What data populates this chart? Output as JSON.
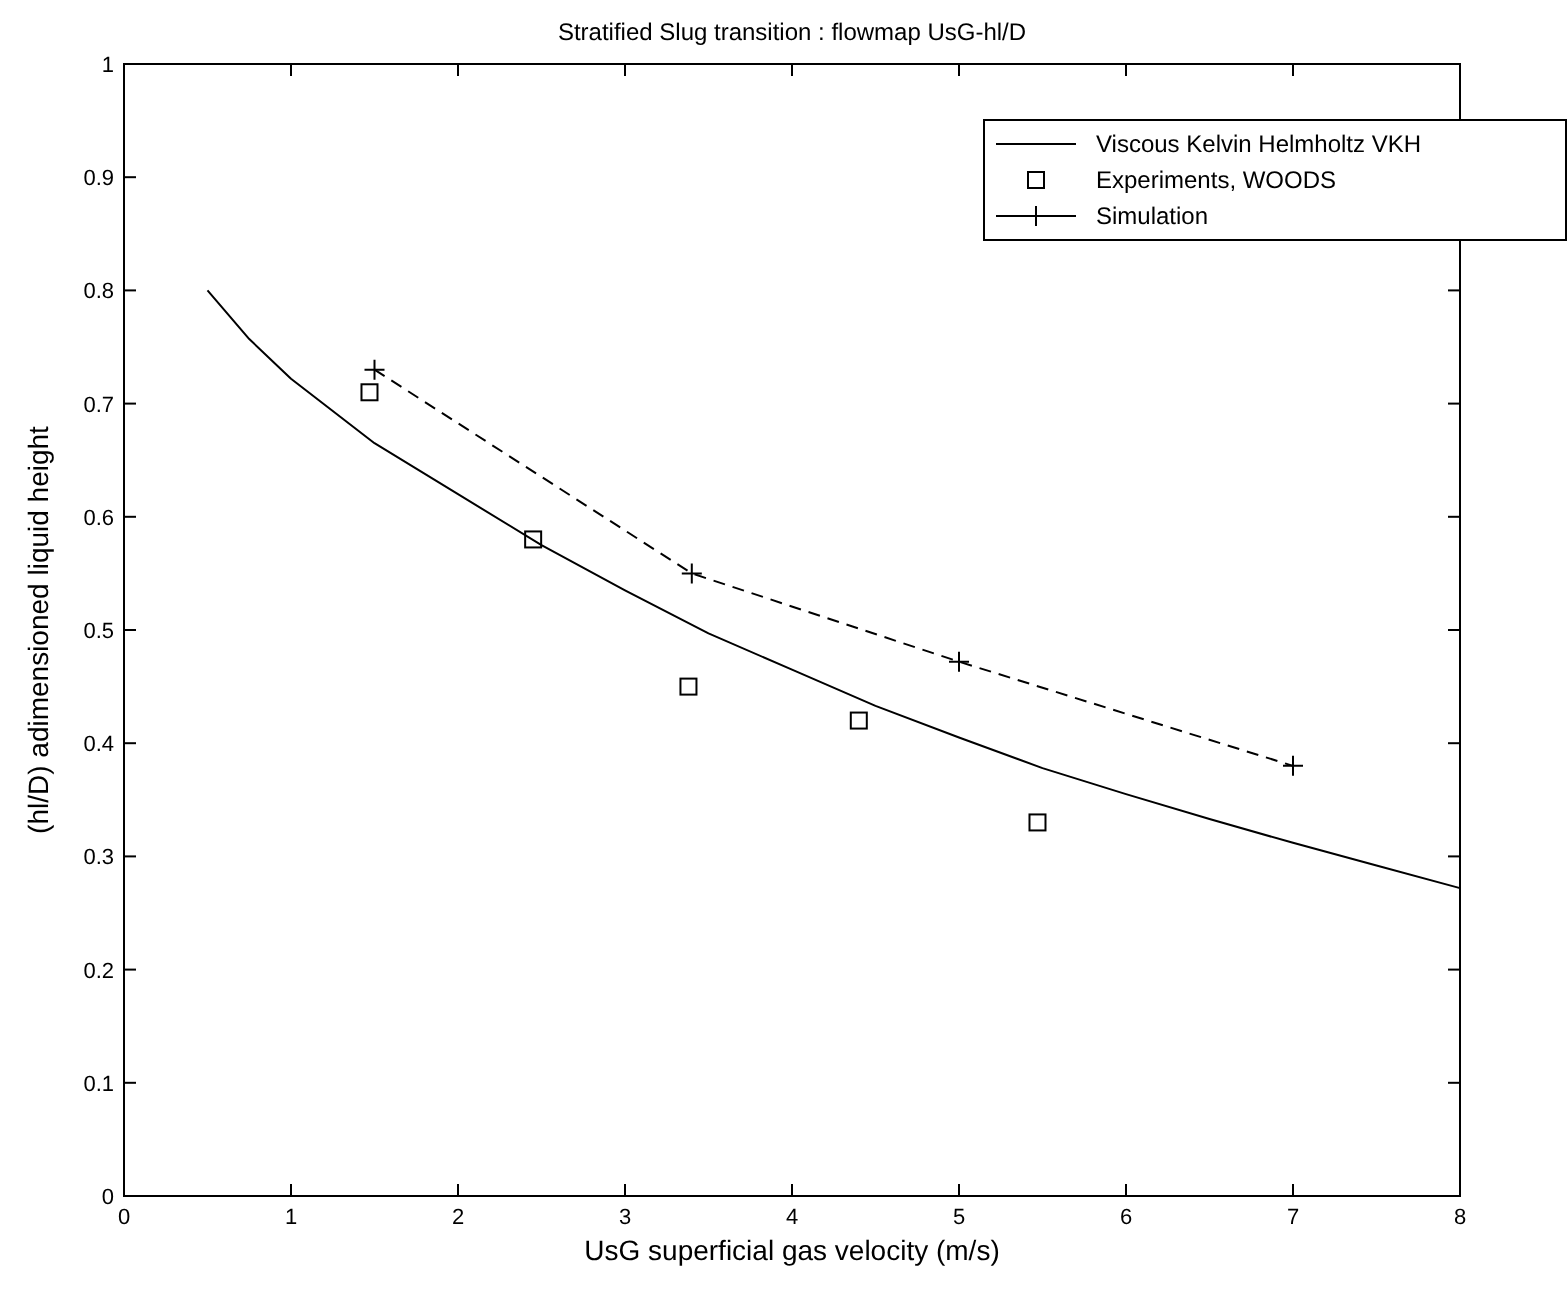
{
  "chart_data": {
    "type": "line",
    "title": "Stratified Slug transition : flowmap UsG-hl/D",
    "xlabel": "UsG superficial gas velocity (m/s)",
    "ylabel": "(hl/D) adimensioned liquid height",
    "xlim": [
      0,
      8
    ],
    "ylim": [
      0,
      1
    ],
    "xticks": [
      0,
      1,
      2,
      3,
      4,
      5,
      6,
      7,
      8
    ],
    "yticks": [
      0,
      0.1,
      0.2,
      0.3,
      0.4,
      0.5,
      0.6,
      0.7,
      0.8,
      0.9,
      1
    ],
    "grid": false,
    "legend": "top right",
    "series": [
      {
        "name": "Viscous Kelvin Helmholtz VKH",
        "color": "#000000",
        "marker": "none",
        "line_style": "solid",
        "x": [
          0.5,
          0.75,
          1,
          1.5,
          2,
          2.5,
          3,
          3.5,
          4,
          4.5,
          5,
          5.5,
          6,
          6.5,
          7,
          7.5,
          8
        ],
        "values": [
          0.8,
          0.757,
          0.722,
          0.665,
          0.62,
          0.575,
          0.535,
          0.497,
          0.465,
          0.433,
          0.405,
          0.378,
          0.355,
          0.333,
          0.312,
          0.292,
          0.272
        ]
      },
      {
        "name": "Experiments, WOODS",
        "type": "scatter",
        "color": "#000000",
        "marker": "square",
        "x": [
          1.47,
          2.45,
          3.38,
          4.4,
          5.47
        ],
        "values": [
          0.71,
          0.58,
          0.45,
          0.42,
          0.33
        ]
      },
      {
        "name": "Simulation",
        "color": "#000000",
        "marker": "cross",
        "line_style": "dashed",
        "x": [
          1.5,
          3.4,
          5.0,
          7.0
        ],
        "values": [
          0.73,
          0.55,
          0.472,
          0.38
        ]
      }
    ]
  }
}
